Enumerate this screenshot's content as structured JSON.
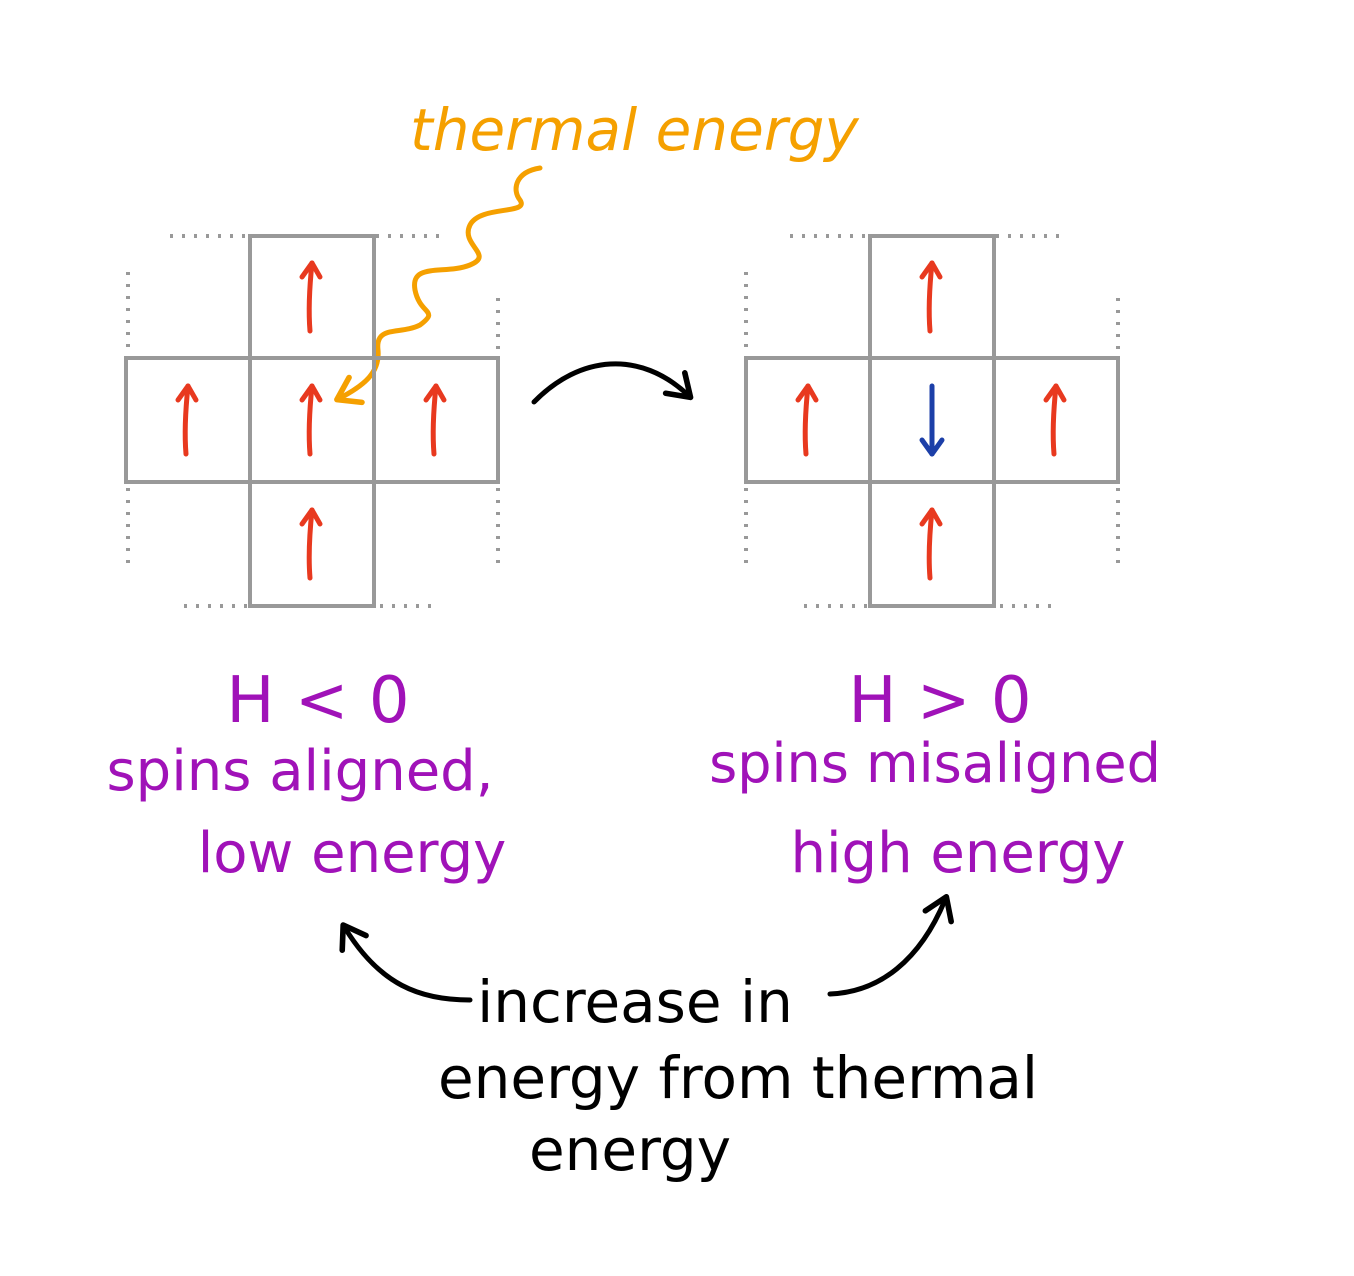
{
  "colors": {
    "grid": "#999999",
    "spin_up": "#e8391f",
    "spin_down": "#1c3fa8",
    "thermal": "#f5a000",
    "label": "#a012b8",
    "ink": "#000000"
  },
  "thermal_label": "thermal energy",
  "left_state": {
    "hamiltonian": "H < 0",
    "line1": "spins aligned,",
    "line2": "low energy",
    "spins": {
      "top": "up",
      "left": "up",
      "center": "up",
      "right": "up",
      "bottom": "up"
    }
  },
  "right_state": {
    "hamiltonian": "H > 0",
    "line1": "spins misaligned",
    "line2": "high energy",
    "spins": {
      "top": "up",
      "left": "up",
      "center": "down",
      "right": "up",
      "bottom": "up"
    }
  },
  "caption": {
    "line1": "increase in",
    "line2": "energy from thermal",
    "line3": "energy"
  }
}
